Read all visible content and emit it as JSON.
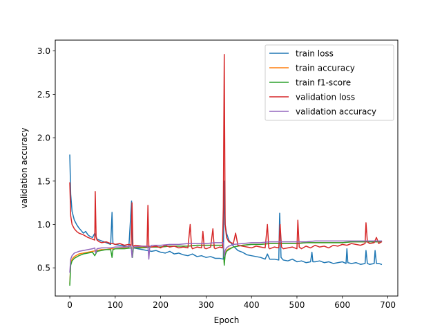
{
  "chart_data": {
    "type": "line",
    "title": "",
    "xlabel": "Epoch",
    "ylabel": "validation accuracy",
    "xlim": [
      -32,
      722
    ],
    "ylim": [
      0.175,
      3.125
    ],
    "xticks": [
      0,
      100,
      200,
      300,
      400,
      500,
      600,
      700
    ],
    "yticks": [
      0.5,
      1.0,
      1.5,
      2.0,
      2.5,
      3.0
    ],
    "xtick_labels": [
      "0",
      "100",
      "200",
      "300",
      "400",
      "500",
      "600",
      "700"
    ],
    "ytick_labels": [
      "0.5",
      "1.0",
      "1.5",
      "2.0",
      "2.5",
      "3.0"
    ],
    "grid": false,
    "legend_position": "top-right",
    "series": [
      {
        "name": "train loss",
        "color": "#1f77b4",
        "x": [
          0,
          2,
          5,
          10,
          15,
          20,
          25,
          30,
          35,
          40,
          45,
          50,
          55,
          60,
          65,
          70,
          75,
          80,
          85,
          90,
          93,
          95,
          100,
          110,
          120,
          130,
          136,
          138,
          140,
          150,
          160,
          170,
          180,
          190,
          200,
          210,
          220,
          230,
          240,
          250,
          260,
          270,
          280,
          290,
          300,
          310,
          320,
          330,
          338,
          340,
          342,
          345,
          350,
          360,
          370,
          380,
          390,
          400,
          410,
          420,
          430,
          435,
          440,
          450,
          460,
          462,
          465,
          470,
          480,
          490,
          500,
          510,
          520,
          530,
          533,
          535,
          540,
          550,
          560,
          570,
          580,
          590,
          600,
          608,
          610,
          612,
          620,
          630,
          640,
          650,
          652,
          655,
          660,
          670,
          672,
          675,
          680,
          686
        ],
        "y": [
          1.8,
          1.35,
          1.15,
          1.05,
          1.0,
          0.96,
          0.93,
          0.9,
          0.92,
          0.88,
          0.86,
          0.85,
          0.9,
          0.83,
          0.82,
          0.81,
          0.8,
          0.79,
          0.78,
          0.77,
          1.14,
          0.78,
          0.77,
          0.76,
          0.75,
          0.74,
          1.27,
          0.76,
          0.73,
          0.72,
          0.71,
          0.7,
          0.69,
          0.7,
          0.68,
          0.67,
          0.69,
          0.66,
          0.67,
          0.65,
          0.64,
          0.66,
          0.63,
          0.64,
          0.62,
          0.63,
          0.61,
          0.61,
          0.6,
          1.5,
          1.0,
          0.9,
          0.82,
          0.75,
          0.7,
          0.68,
          0.65,
          0.64,
          0.63,
          0.62,
          0.6,
          0.66,
          0.6,
          0.6,
          0.59,
          1.13,
          0.62,
          0.59,
          0.58,
          0.6,
          0.57,
          0.58,
          0.56,
          0.57,
          0.68,
          0.57,
          0.57,
          0.58,
          0.56,
          0.57,
          0.55,
          0.56,
          0.57,
          0.55,
          0.72,
          0.56,
          0.55,
          0.56,
          0.54,
          0.55,
          0.7,
          0.55,
          0.54,
          0.55,
          0.7,
          0.55,
          0.55,
          0.54
        ]
      },
      {
        "name": "train accuracy",
        "color": "#ff7f0e",
        "x": [
          0,
          2,
          5,
          10,
          20,
          30,
          40,
          50,
          60,
          70,
          80,
          90,
          100,
          120,
          140,
          160,
          180,
          200,
          220,
          240,
          260,
          280,
          300,
          320,
          338,
          340,
          342,
          345,
          350,
          360,
          380,
          400,
          420,
          440,
          460,
          480,
          500,
          520,
          540,
          560,
          580,
          600,
          620,
          640,
          660,
          686
        ],
        "y": [
          0.32,
          0.55,
          0.6,
          0.63,
          0.66,
          0.67,
          0.68,
          0.69,
          0.7,
          0.71,
          0.71,
          0.72,
          0.72,
          0.73,
          0.73,
          0.74,
          0.74,
          0.74,
          0.75,
          0.75,
          0.75,
          0.76,
          0.76,
          0.76,
          0.76,
          0.55,
          0.66,
          0.7,
          0.72,
          0.74,
          0.76,
          0.77,
          0.77,
          0.78,
          0.78,
          0.78,
          0.78,
          0.79,
          0.79,
          0.79,
          0.79,
          0.79,
          0.8,
          0.8,
          0.8,
          0.8
        ]
      },
      {
        "name": "train f1-score",
        "color": "#2ca02c",
        "x": [
          0,
          2,
          5,
          10,
          20,
          30,
          40,
          50,
          55,
          60,
          70,
          80,
          90,
          93,
          95,
          100,
          120,
          136,
          138,
          140,
          160,
          180,
          200,
          220,
          240,
          260,
          280,
          300,
          320,
          338,
          340,
          342,
          345,
          350,
          360,
          380,
          400,
          420,
          440,
          460,
          480,
          500,
          520,
          540,
          560,
          580,
          600,
          620,
          640,
          660,
          686
        ],
        "y": [
          0.3,
          0.53,
          0.58,
          0.61,
          0.64,
          0.66,
          0.67,
          0.68,
          0.64,
          0.69,
          0.7,
          0.71,
          0.71,
          0.62,
          0.71,
          0.72,
          0.72,
          0.73,
          0.62,
          0.73,
          0.73,
          0.74,
          0.74,
          0.75,
          0.75,
          0.75,
          0.76,
          0.76,
          0.76,
          0.76,
          0.53,
          0.65,
          0.69,
          0.71,
          0.74,
          0.76,
          0.77,
          0.77,
          0.78,
          0.78,
          0.78,
          0.78,
          0.79,
          0.79,
          0.79,
          0.79,
          0.79,
          0.8,
          0.8,
          0.8,
          0.8
        ]
      },
      {
        "name": "validation loss",
        "color": "#d62728",
        "x": [
          0,
          2,
          5,
          10,
          15,
          20,
          30,
          40,
          50,
          55,
          56,
          58,
          60,
          65,
          70,
          80,
          90,
          95,
          100,
          110,
          120,
          130,
          135,
          137,
          139,
          145,
          160,
          170,
          172,
          174,
          180,
          190,
          200,
          210,
          220,
          230,
          240,
          250,
          260,
          265,
          268,
          270,
          280,
          290,
          293,
          296,
          300,
          310,
          315,
          318,
          320,
          330,
          336,
          338,
          340,
          342,
          345,
          350,
          360,
          365,
          370,
          380,
          390,
          400,
          410,
          420,
          430,
          435,
          438,
          440,
          450,
          460,
          463,
          466,
          470,
          480,
          490,
          500,
          502,
          505,
          510,
          520,
          530,
          540,
          550,
          560,
          570,
          580,
          590,
          600,
          610,
          620,
          630,
          640,
          650,
          652,
          655,
          660,
          670,
          675,
          680,
          686
        ],
        "y": [
          1.48,
          1.1,
          1.0,
          0.95,
          0.92,
          0.9,
          0.88,
          0.85,
          0.83,
          0.82,
          1.38,
          0.85,
          0.82,
          0.8,
          0.79,
          0.8,
          0.78,
          0.78,
          0.77,
          0.78,
          0.76,
          0.77,
          0.76,
          1.25,
          0.75,
          0.76,
          0.75,
          0.74,
          1.22,
          0.75,
          0.74,
          0.75,
          0.73,
          0.76,
          0.74,
          0.75,
          0.73,
          0.74,
          0.73,
          1.0,
          0.74,
          0.72,
          0.74,
          0.73,
          0.92,
          0.73,
          0.72,
          0.74,
          0.95,
          0.73,
          0.72,
          0.74,
          0.73,
          1.2,
          2.96,
          1.0,
          0.85,
          0.8,
          0.78,
          0.9,
          0.76,
          0.75,
          0.74,
          0.73,
          0.75,
          0.74,
          0.73,
          1.0,
          0.73,
          0.72,
          0.74,
          0.73,
          1.0,
          0.74,
          0.72,
          0.73,
          0.74,
          0.72,
          1.05,
          0.74,
          0.72,
          0.75,
          0.73,
          0.76,
          0.74,
          0.75,
          0.73,
          0.76,
          0.75,
          0.77,
          0.76,
          0.78,
          0.77,
          0.76,
          0.78,
          1.02,
          0.8,
          0.78,
          0.79,
          0.85,
          0.78,
          0.8
        ]
      },
      {
        "name": "validation accuracy",
        "color": "#9467bd",
        "x": [
          0,
          2,
          5,
          10,
          20,
          30,
          40,
          50,
          55,
          57,
          60,
          70,
          80,
          90,
          100,
          120,
          135,
          137,
          140,
          160,
          172,
          174,
          176,
          180,
          200,
          220,
          240,
          260,
          280,
          300,
          320,
          338,
          340,
          342,
          345,
          350,
          360,
          380,
          400,
          420,
          440,
          460,
          480,
          500,
          520,
          540,
          560,
          580,
          600,
          620,
          640,
          660,
          686
        ],
        "y": [
          0.45,
          0.6,
          0.64,
          0.67,
          0.69,
          0.7,
          0.71,
          0.72,
          0.73,
          0.67,
          0.72,
          0.73,
          0.73,
          0.73,
          0.74,
          0.74,
          0.75,
          0.62,
          0.74,
          0.75,
          0.75,
          0.6,
          0.74,
          0.76,
          0.76,
          0.77,
          0.77,
          0.78,
          0.78,
          0.78,
          0.79,
          0.79,
          0.63,
          0.7,
          0.73,
          0.75,
          0.77,
          0.78,
          0.79,
          0.79,
          0.8,
          0.8,
          0.8,
          0.8,
          0.8,
          0.81,
          0.81,
          0.81,
          0.81,
          0.81,
          0.81,
          0.81,
          0.81
        ]
      }
    ]
  }
}
